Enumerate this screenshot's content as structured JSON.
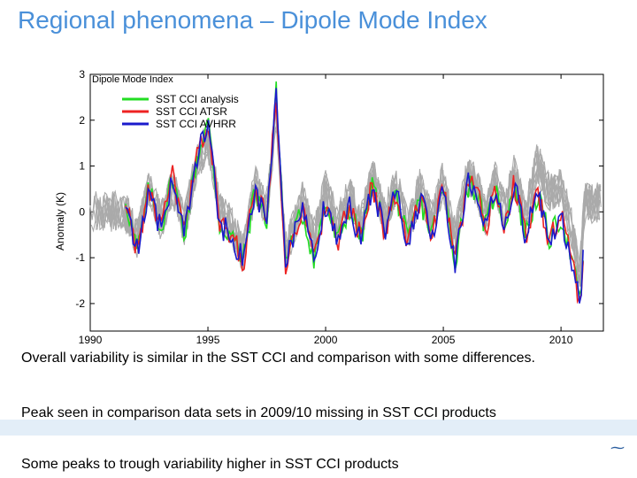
{
  "slide": {
    "title": "Regional phenomena – Dipole Mode Index",
    "captions": [
      "Overall variability is similar in the SST CCI and comparison with some differences.",
      "Peak seen in comparison data sets in 2009/10 missing in SST CCI products",
      "Some peaks to trough variability higher in SST CCI products"
    ]
  },
  "colors": {
    "title": "#4a90d9",
    "analysis": "#22dd22",
    "atsr": "#ee2222",
    "avhrr": "#1a1acc",
    "comparison": "#aaaaaa"
  },
  "chart_data": {
    "type": "line",
    "title": "Dipole Mode Index",
    "xlabel": "",
    "ylabel": "Anomaly (K)",
    "xlim": [
      1990,
      2011.8
    ],
    "ylim": [
      -2.6,
      3.0
    ],
    "xticks": [
      1990,
      1995,
      2000,
      2005,
      2010
    ],
    "yticks": [
      -2,
      -1,
      0,
      1,
      2,
      3
    ],
    "legend": {
      "position": "top-left",
      "entries": [
        "SST CCI analysis",
        "SST CCI ATSR",
        "SST CCI AVHRR"
      ]
    },
    "anchors_x": [
      1991.5,
      1992.0,
      1992.5,
      1993.0,
      1993.5,
      1994.0,
      1994.5,
      1995.0,
      1995.5,
      1996.0,
      1996.5,
      1997.0,
      1997.5,
      1997.9,
      1998.3,
      1998.7,
      1999.0,
      1999.5,
      2000.0,
      2000.5,
      2001.0,
      2001.5,
      2002.0,
      2002.5,
      2003.0,
      2003.5,
      2004.0,
      2004.5,
      2005.0,
      2005.5,
      2006.0,
      2006.4,
      2006.8,
      2007.2,
      2007.6,
      2008.0,
      2008.5,
      2009.0,
      2009.5,
      2010.0,
      2010.4,
      2010.8,
      2011.0
    ],
    "series": [
      {
        "name": "SST CCI analysis",
        "values": [
          0.3,
          -0.9,
          0.5,
          -0.4,
          0.8,
          -0.5,
          1.1,
          2.0,
          -0.3,
          -0.5,
          -1.1,
          0.5,
          -0.2,
          2.6,
          -1.1,
          -0.4,
          0.0,
          -1.0,
          0.2,
          -0.7,
          0.1,
          -0.6,
          0.6,
          -0.4,
          0.4,
          -0.7,
          0.3,
          -0.5,
          0.5,
          -1.1,
          0.6,
          0.5,
          -0.4,
          0.5,
          -0.3,
          0.6,
          -0.5,
          0.4,
          -0.6,
          -0.1,
          -0.9,
          -2.0,
          -0.6
        ]
      },
      {
        "name": "SST CCI ATSR",
        "values": [
          0.3,
          -0.9,
          0.5,
          -0.4,
          0.8,
          -0.5,
          1.1,
          2.0,
          -0.3,
          -0.5,
          -1.1,
          0.5,
          -0.2,
          2.6,
          -1.1,
          -0.4,
          0.0,
          -1.0,
          0.2,
          -0.7,
          0.1,
          -0.6,
          0.6,
          -0.4,
          0.4,
          -0.7,
          0.3,
          -0.5,
          0.5,
          -1.1,
          0.6,
          0.5,
          -0.4,
          0.5,
          -0.3,
          0.6,
          -0.5,
          0.4,
          -0.6,
          -0.1,
          -0.9,
          -2.0,
          -0.6
        ]
      },
      {
        "name": "SST CCI AVHRR",
        "values": [
          0.3,
          -0.9,
          0.5,
          -0.4,
          0.8,
          -0.5,
          1.1,
          2.0,
          -0.3,
          -0.5,
          -1.1,
          0.5,
          -0.2,
          2.6,
          -1.1,
          -0.4,
          0.0,
          -1.0,
          0.2,
          -0.7,
          0.1,
          -0.6,
          0.6,
          -0.4,
          0.4,
          -0.7,
          0.3,
          -0.5,
          0.5,
          -1.1,
          0.6,
          0.5,
          -0.4,
          0.5,
          -0.3,
          0.6,
          -0.5,
          0.4,
          -0.6,
          -0.1,
          -0.9,
          -2.0,
          -0.6
        ]
      },
      {
        "name": "comparison data sets",
        "values": [
          0.0,
          -0.6,
          0.5,
          -0.2,
          0.6,
          -0.3,
          1.0,
          1.6,
          0.0,
          -0.3,
          -0.9,
          0.6,
          0.0,
          2.2,
          -0.9,
          -0.2,
          0.3,
          -0.6,
          0.5,
          -0.3,
          0.4,
          -0.3,
          0.8,
          -0.1,
          0.6,
          -0.4,
          0.5,
          -0.2,
          0.7,
          -0.6,
          0.8,
          0.6,
          -0.1,
          0.7,
          0.0,
          0.8,
          -0.1,
          1.1,
          0.4,
          0.5,
          -0.2,
          -1.4,
          0.2
        ]
      }
    ]
  }
}
